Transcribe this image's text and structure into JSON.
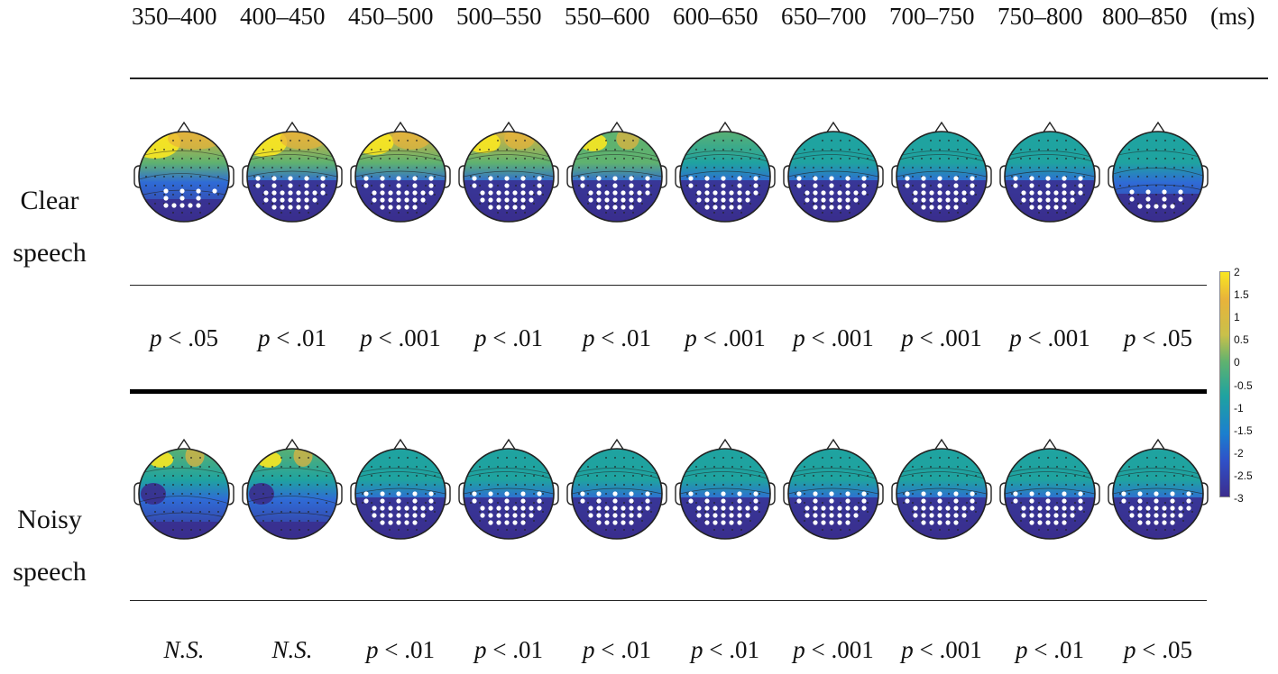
{
  "header": {
    "time_windows": [
      "350–400",
      "400–450",
      "450–500",
      "500–550",
      "550–600",
      "600–650",
      "650–700",
      "700–750",
      "750–800",
      "800–850"
    ],
    "unit": "(ms)"
  },
  "rows": [
    {
      "label_line1": "Clear",
      "label_line2": "speech",
      "pvalues": [
        {
          "p": "p",
          "text": " < .05"
        },
        {
          "p": "p",
          "text": " < .01"
        },
        {
          "p": "p",
          "text": " < .001"
        },
        {
          "p": "p",
          "text": " < .01"
        },
        {
          "p": "p",
          "text": " < .01"
        },
        {
          "p": "p",
          "text": " < .001"
        },
        {
          "p": "p",
          "text": " < .001"
        },
        {
          "p": "p",
          "text": " < .001"
        },
        {
          "p": "p",
          "text": " < .001"
        },
        {
          "p": "p",
          "text": " < .05"
        }
      ]
    },
    {
      "label_line1": "Noisy",
      "label_line2": "speech",
      "pvalues": [
        {
          "p": "",
          "text": "N.S."
        },
        {
          "p": "",
          "text": "N.S."
        },
        {
          "p": "p",
          "text": " < .01"
        },
        {
          "p": "p",
          "text": " < .01"
        },
        {
          "p": "p",
          "text": " < .01"
        },
        {
          "p": "p",
          "text": " < .01"
        },
        {
          "p": "p",
          "text": " < .001"
        },
        {
          "p": "p",
          "text": " < .001"
        },
        {
          "p": "p",
          "text": " < .01"
        },
        {
          "p": "p",
          "text": " < .05"
        }
      ]
    }
  ],
  "colorbar": {
    "ticks": [
      "2",
      "1.5",
      "1",
      "0.5",
      "0",
      "-0.5",
      "-1",
      "-1.5",
      "-2",
      "-2.5",
      "-3"
    ]
  },
  "colors": {
    "yellow": "#f9e721",
    "orange": "#e8b33a",
    "green": "#5fb26f",
    "teal": "#1fa3a0",
    "blue": "#2f6bd6",
    "dark_blue": "#3a2d8c"
  }
}
